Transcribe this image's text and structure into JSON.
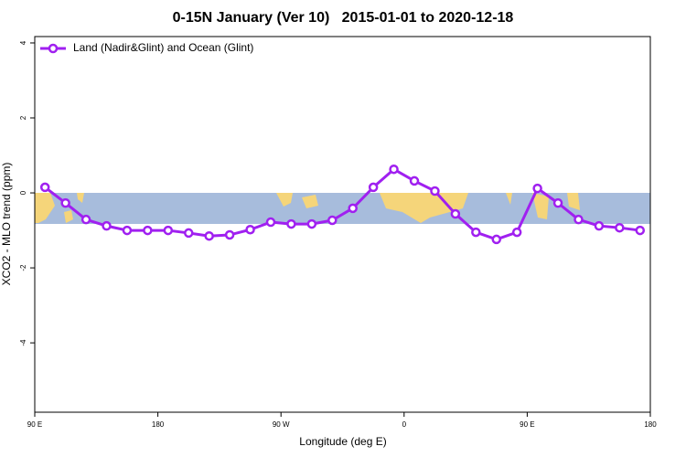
{
  "chart_data": {
    "type": "line",
    "title": "0-15N January (Ver 10)   2015-01-01 to 2020-12-18",
    "x_label": "Longitude (deg E)",
    "y_label": "XCO2 - MLO trend (ppm)",
    "xlim": [
      90,
      540
    ],
    "ylim": [
      -5.85,
      4.17
    ],
    "xticks": [
      {
        "value": 90,
        "label": "90 E"
      },
      {
        "value": 180,
        "label": "180"
      },
      {
        "value": 270,
        "label": "90 W"
      },
      {
        "value": 360,
        "label": "0"
      },
      {
        "value": 450,
        "label": "90 E"
      },
      {
        "value": 540,
        "label": "180"
      }
    ],
    "yticks": [
      4,
      2,
      0,
      -2,
      -4
    ],
    "legend": "top-left",
    "x": [
      97.5,
      112.5,
      127.5,
      142.5,
      157.5,
      172.5,
      187.5,
      202.5,
      217.5,
      232.5,
      247.5,
      262.5,
      277.5,
      292.5,
      307.5,
      322.5,
      337.5,
      352.5,
      367.5,
      382.5,
      397.5,
      412.5,
      427.5,
      442.5,
      457.5,
      472.5,
      487.5,
      502.5,
      517.5,
      532.5
    ],
    "series": [
      {
        "name": "Land (Nadir&Glint) and Ocean (Glint)",
        "color": "#a020f0",
        "values": [
          0.15,
          -0.27,
          -0.71,
          -0.88,
          -1.0,
          -1.0,
          -1.0,
          -1.07,
          -1.15,
          -1.12,
          -0.98,
          -0.78,
          -0.83,
          -0.83,
          -0.73,
          -0.41,
          0.15,
          0.63,
          0.32,
          0.05,
          -0.56,
          -1.05,
          -1.24,
          -1.05,
          0.12,
          -0.27,
          -0.71,
          -0.88,
          -0.93,
          -1.0
        ]
      }
    ]
  }
}
